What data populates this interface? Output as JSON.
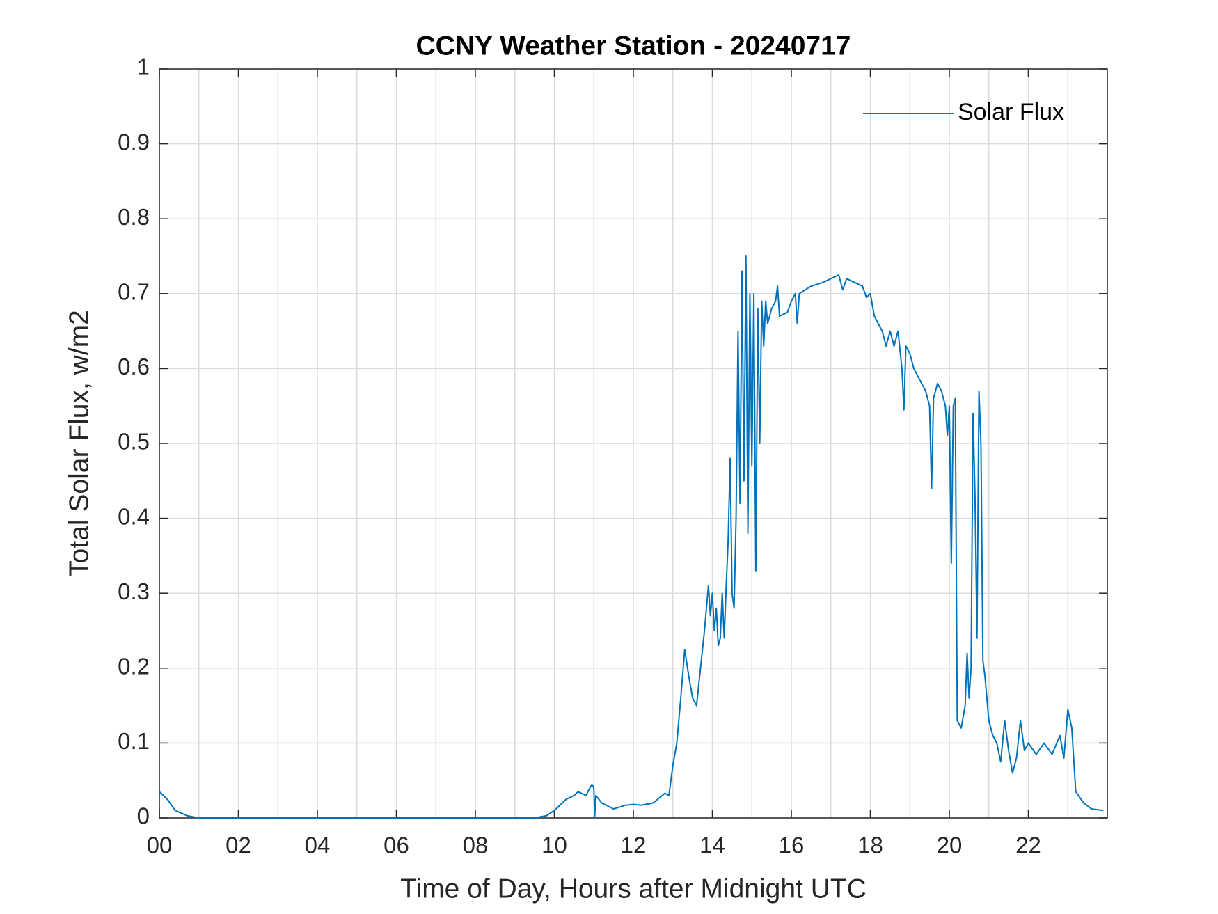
{
  "chart_data": {
    "type": "line",
    "title": "CCNY Weather Station - 20240717",
    "xlabel": "Time of Day, Hours after Midnight UTC",
    "ylabel": "Total Solar Flux, w/m2",
    "xlim": [
      0,
      24
    ],
    "ylim": [
      0,
      1
    ],
    "xticks": [
      {
        "value": 0,
        "label": "00"
      },
      {
        "value": 2,
        "label": "02"
      },
      {
        "value": 4,
        "label": "04"
      },
      {
        "value": 6,
        "label": "06"
      },
      {
        "value": 8,
        "label": "08"
      },
      {
        "value": 10,
        "label": "10"
      },
      {
        "value": 12,
        "label": "12"
      },
      {
        "value": 14,
        "label": "14"
      },
      {
        "value": 16,
        "label": "16"
      },
      {
        "value": 18,
        "label": "18"
      },
      {
        "value": 20,
        "label": "20"
      },
      {
        "value": 22,
        "label": "22"
      }
    ],
    "xminorticks": [
      1,
      3,
      5,
      7,
      9,
      11,
      13,
      15,
      17,
      19,
      21,
      23
    ],
    "yticks": [
      0,
      0.1,
      0.2,
      0.3,
      0.4,
      0.5,
      0.6,
      0.7,
      0.8,
      0.9,
      1
    ],
    "grid": true,
    "legend": "upper right",
    "series": [
      {
        "name": "Solar Flux",
        "color": "#0072bd",
        "x": [
          0,
          0.2,
          0.4,
          0.7,
          1.0,
          9.5,
          9.8,
          10.0,
          10.3,
          10.5,
          10.6,
          10.8,
          10.95,
          11.0,
          11.02,
          11.05,
          11.2,
          11.5,
          11.8,
          12.0,
          12.2,
          12.5,
          12.8,
          12.9,
          13.0,
          13.1,
          13.2,
          13.3,
          13.4,
          13.5,
          13.6,
          13.7,
          13.8,
          13.9,
          13.95,
          14.0,
          14.05,
          14.1,
          14.15,
          14.2,
          14.25,
          14.3,
          14.35,
          14.4,
          14.45,
          14.5,
          14.55,
          14.6,
          14.65,
          14.7,
          14.75,
          14.8,
          14.85,
          14.9,
          14.95,
          15.0,
          15.05,
          15.1,
          15.15,
          15.2,
          15.25,
          15.3,
          15.35,
          15.4,
          15.5,
          15.6,
          15.65,
          15.7,
          15.9,
          16.0,
          16.1,
          16.15,
          16.2,
          16.5,
          16.8,
          17.0,
          17.2,
          17.3,
          17.4,
          17.6,
          17.8,
          17.9,
          18.0,
          18.1,
          18.2,
          18.3,
          18.4,
          18.5,
          18.6,
          18.7,
          18.8,
          18.85,
          18.9,
          19.0,
          19.1,
          19.2,
          19.3,
          19.4,
          19.5,
          19.55,
          19.6,
          19.7,
          19.8,
          19.9,
          19.95,
          20.0,
          20.05,
          20.1,
          20.15,
          20.2,
          20.3,
          20.4,
          20.45,
          20.5,
          20.55,
          20.6,
          20.65,
          20.7,
          20.75,
          20.8,
          20.85,
          20.9,
          21.0,
          21.1,
          21.2,
          21.3,
          21.4,
          21.5,
          21.6,
          21.7,
          21.8,
          21.9,
          22.0,
          22.2,
          22.4,
          22.6,
          22.8,
          22.9,
          23.0,
          23.1,
          23.2,
          23.4,
          23.6,
          23.9
        ],
        "values": [
          0.035,
          0.025,
          0.01,
          0.003,
          0,
          0,
          0.003,
          0.01,
          0.025,
          0.03,
          0.035,
          0.03,
          0.045,
          0.04,
          0,
          0.03,
          0.02,
          0.012,
          0.017,
          0.018,
          0.017,
          0.02,
          0.033,
          0.03,
          0.07,
          0.1,
          0.16,
          0.225,
          0.19,
          0.16,
          0.15,
          0.2,
          0.25,
          0.31,
          0.27,
          0.3,
          0.25,
          0.28,
          0.23,
          0.24,
          0.3,
          0.24,
          0.31,
          0.37,
          0.48,
          0.3,
          0.28,
          0.4,
          0.65,
          0.42,
          0.73,
          0.45,
          0.75,
          0.38,
          0.7,
          0.47,
          0.7,
          0.33,
          0.68,
          0.5,
          0.69,
          0.63,
          0.69,
          0.66,
          0.68,
          0.69,
          0.71,
          0.67,
          0.675,
          0.69,
          0.7,
          0.66,
          0.7,
          0.71,
          0.715,
          0.72,
          0.725,
          0.705,
          0.72,
          0.715,
          0.71,
          0.695,
          0.7,
          0.67,
          0.66,
          0.65,
          0.63,
          0.65,
          0.63,
          0.65,
          0.6,
          0.545,
          0.63,
          0.62,
          0.6,
          0.59,
          0.58,
          0.57,
          0.55,
          0.44,
          0.56,
          0.58,
          0.57,
          0.55,
          0.51,
          0.55,
          0.34,
          0.55,
          0.56,
          0.13,
          0.12,
          0.15,
          0.22,
          0.16,
          0.2,
          0.54,
          0.43,
          0.24,
          0.57,
          0.5,
          0.21,
          0.19,
          0.13,
          0.11,
          0.1,
          0.075,
          0.13,
          0.09,
          0.06,
          0.08,
          0.13,
          0.09,
          0.1,
          0.085,
          0.1,
          0.085,
          0.11,
          0.08,
          0.145,
          0.12,
          0.035,
          0.02,
          0.012,
          0.01
        ]
      }
    ]
  }
}
